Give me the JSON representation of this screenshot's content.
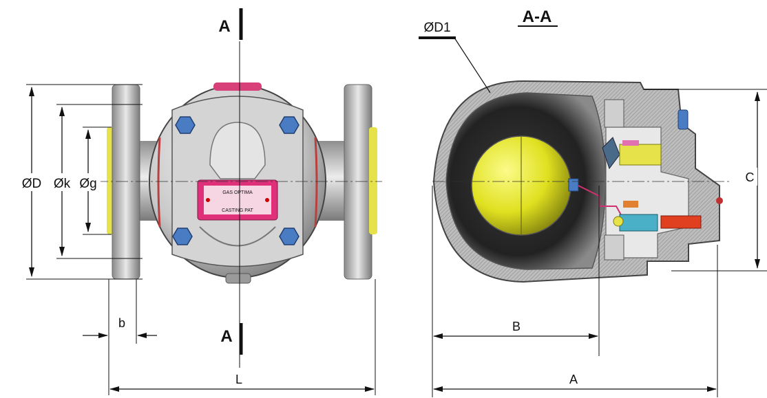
{
  "views": {
    "front": {
      "section_marker_top": "A",
      "section_marker_bottom": "A",
      "dims": {
        "outer_diameter": "ØD",
        "bolt_circle": "Øk",
        "bore": "Øg",
        "flange_thickness": "b",
        "length": "L"
      },
      "nameplate_lines": [
        "GAS OPTIMA",
        "CASTING PAT"
      ]
    },
    "section": {
      "title": "A-A",
      "dims": {
        "body_diameter": "ØD1",
        "ball_center": "B",
        "overall": "A",
        "height": "C"
      }
    }
  },
  "colors": {
    "body": "#c9c9c9",
    "body_dark": "#7d7d7d",
    "bolt": "#4a7cc4",
    "float_ball": "#e0e020",
    "nameplate": "#e0307a",
    "flange_face": "#e6e24a",
    "section_hatch": "#a8a8a8"
  }
}
